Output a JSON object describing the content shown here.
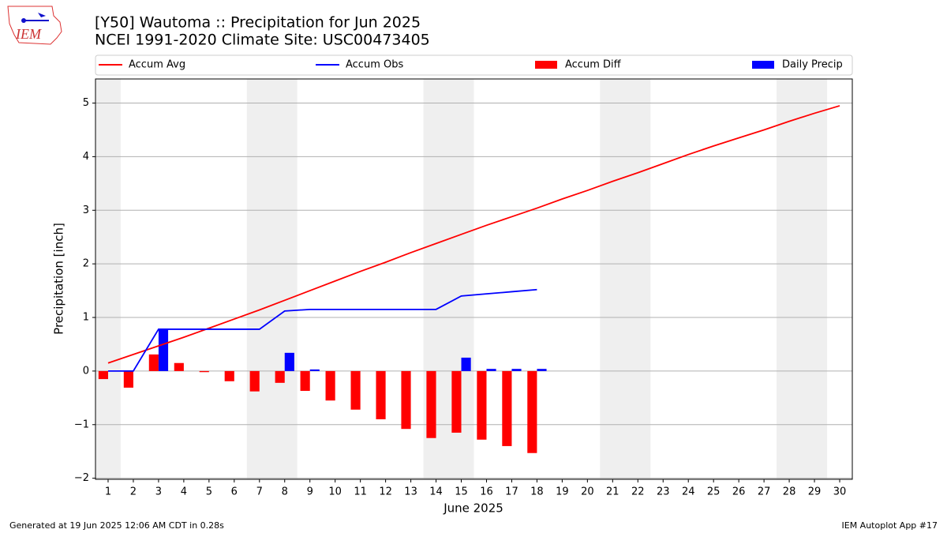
{
  "chart_data": {
    "type": "bar",
    "logo_text": "IEM",
    "title": "[Y50] Wautoma :: Precipitation for Jun 2025",
    "subtitle": "NCEI 1991-2020 Climate Site: USC00473405",
    "ylabel": "Precipitation [inch]",
    "xlabel": "June 2025",
    "footer_left": "Generated at 19 Jun 2025 12:06 AM CDT in 0.28s",
    "footer_right": "IEM Autoplot App #17",
    "x": [
      1,
      2,
      3,
      4,
      5,
      6,
      7,
      8,
      9,
      10,
      11,
      12,
      13,
      14,
      15,
      16,
      17,
      18,
      19,
      20,
      21,
      22,
      23,
      24,
      25,
      26,
      27,
      28,
      29,
      30
    ],
    "xlim": [
      0.5,
      30.5
    ],
    "xticks": [
      1,
      2,
      3,
      4,
      5,
      6,
      7,
      8,
      9,
      10,
      11,
      12,
      13,
      14,
      15,
      16,
      17,
      18,
      19,
      20,
      21,
      22,
      23,
      24,
      25,
      26,
      27,
      28,
      29,
      30
    ],
    "ylim": [
      -2.02,
      5.45
    ],
    "yticks": [
      {
        "value": -2,
        "label": "−2"
      },
      {
        "value": -1,
        "label": "−1"
      },
      0,
      1,
      2,
      3,
      4,
      5
    ],
    "grid": true,
    "shaded_spans": [
      [
        0.5,
        1.5
      ],
      [
        6.5,
        8.5
      ],
      [
        13.5,
        15.5
      ],
      [
        20.5,
        22.5
      ],
      [
        27.5,
        29.5
      ]
    ],
    "shade_color": "#efefef",
    "series": [
      {
        "name": "Accum Avg",
        "type": "line",
        "color": "#ff0000",
        "values": [
          0.15,
          0.31,
          0.47,
          0.63,
          0.8,
          0.97,
          1.14,
          1.32,
          1.5,
          1.68,
          1.86,
          2.03,
          2.21,
          2.38,
          2.55,
          2.72,
          2.88,
          3.04,
          3.21,
          3.37,
          3.54,
          3.7,
          3.87,
          4.04,
          4.2,
          4.35,
          4.5,
          4.66,
          4.81,
          4.95
        ]
      },
      {
        "name": "Accum Obs",
        "type": "line",
        "color": "#0000ff",
        "values": [
          0,
          0,
          0.78,
          0.78,
          0.78,
          0.78,
          0.78,
          1.12,
          1.15,
          1.15,
          1.15,
          1.15,
          1.15,
          1.15,
          1.4,
          1.44,
          1.48,
          1.52,
          null,
          null,
          null,
          null,
          null,
          null,
          null,
          null,
          null,
          null,
          null,
          null
        ]
      },
      {
        "name": "Accum Diff",
        "type": "bar",
        "color": "#ff0000",
        "values": [
          -0.15,
          -0.31,
          0.31,
          0.15,
          -0.02,
          -0.19,
          -0.38,
          -0.22,
          -0.37,
          -0.55,
          -0.72,
          -0.9,
          -1.08,
          -1.25,
          -1.15,
          -1.28,
          -1.4,
          -1.53,
          null,
          null,
          null,
          null,
          null,
          null,
          null,
          null,
          null,
          null,
          null,
          null
        ]
      },
      {
        "name": "Daily Precip",
        "type": "bar",
        "color": "#0000ff",
        "values": [
          0,
          0,
          0.78,
          0,
          0,
          0,
          0,
          0.34,
          0.03,
          0,
          0,
          0,
          0,
          0,
          0.25,
          0.04,
          0.04,
          0.04,
          null,
          null,
          null,
          null,
          null,
          null,
          null,
          null,
          null,
          null,
          null,
          null
        ]
      }
    ]
  }
}
